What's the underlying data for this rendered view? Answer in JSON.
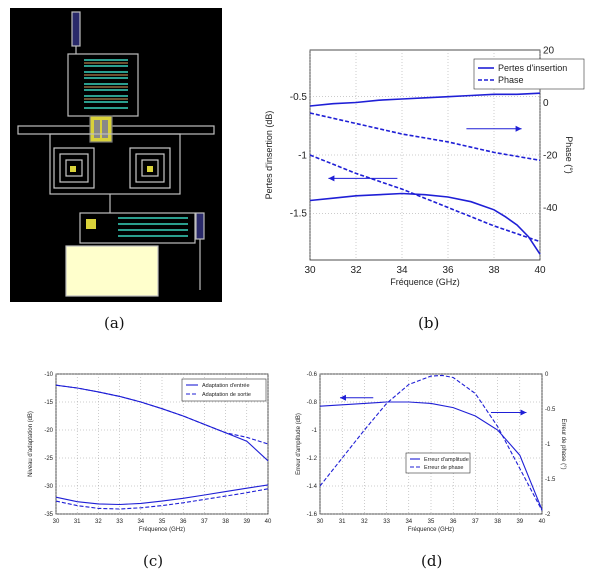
{
  "captions": {
    "a": "(a)",
    "b": "(b)",
    "c": "(c)",
    "d": "(d)"
  },
  "colors": {
    "curve": "#1f1fd6",
    "layout_bg": "#000000",
    "metal": "#bfbfbf",
    "via": "#d9d23a",
    "pad": "#ffffcc",
    "stripe": "#2a9e8e"
  },
  "chart_data": [
    {
      "panel": "b",
      "type": "line",
      "xlabel": "Fréquence (GHz)",
      "ylabel": "Pertes d'insertion (dB)",
      "y2label": "Phase (°)",
      "xlim": [
        30,
        40
      ],
      "ylim": [
        -1.9,
        -0.1
      ],
      "y2lim": [
        -60,
        20
      ],
      "xticks": [
        "30",
        "32",
        "34",
        "36",
        "38",
        "40"
      ],
      "yticks": [
        "-0.5",
        "-1",
        "-1.5"
      ],
      "y2ticks": [
        "20",
        "0",
        "-20",
        "-40"
      ],
      "legend": {
        "position": "top-right",
        "entries": [
          "Pertes d'insertion",
          "Phase"
        ]
      },
      "series": [
        {
          "name": "Pertes d'insertion",
          "axis": "left",
          "style": "solid",
          "x": [
            30,
            31,
            32,
            33,
            34,
            35,
            36,
            37,
            38,
            39,
            40
          ],
          "values": [
            -0.58,
            -0.56,
            -0.55,
            -0.53,
            -0.52,
            -0.51,
            -0.5,
            -0.49,
            -0.48,
            -0.48,
            -0.47
          ]
        },
        {
          "axis": "left",
          "style": "solid",
          "x": [
            30,
            31,
            32,
            33,
            34,
            35,
            36,
            37,
            38,
            38.5,
            39,
            39.5,
            40
          ],
          "values": [
            -1.39,
            -1.37,
            -1.35,
            -1.34,
            -1.33,
            -1.34,
            -1.36,
            -1.4,
            -1.47,
            -1.53,
            -1.6,
            -1.7,
            -1.85
          ]
        },
        {
          "name": "Phase",
          "axis": "right",
          "style": "dashed",
          "x": [
            30,
            32,
            34,
            36,
            38,
            40
          ],
          "values": [
            -4,
            -8,
            -12,
            -15,
            -19,
            -22
          ]
        },
        {
          "axis": "right",
          "style": "dashed",
          "x": [
            30,
            32,
            34,
            36,
            38,
            40
          ],
          "values": [
            -20,
            -27,
            -33,
            -40,
            -47,
            -53
          ]
        }
      ],
      "annotations": [
        {
          "type": "arrow",
          "direction": "right",
          "x_from": 36.8,
          "x_to": 39.2,
          "y": -10,
          "axis": "right"
        },
        {
          "type": "arrow",
          "direction": "left",
          "x_from": 33.8,
          "x_to": 30.8,
          "y": -1.2,
          "axis": "left"
        }
      ]
    },
    {
      "panel": "c",
      "type": "line",
      "xlabel": "Fréquence (GHz)",
      "ylabel": "Niveau d'adaptation (dB)",
      "xlim": [
        30,
        40
      ],
      "ylim": [
        -35,
        -10
      ],
      "xticks": [
        "30",
        "31",
        "32",
        "33",
        "34",
        "35",
        "36",
        "37",
        "38",
        "39",
        "40"
      ],
      "yticks": [
        "-10",
        "-15",
        "-20",
        "-25",
        "-30",
        "-35"
      ],
      "legend": {
        "position": "top-right",
        "entries": [
          "Adaptation d'entrée",
          "Adaptation de sortie"
        ]
      },
      "series": [
        {
          "name": "Adaptation d'entrée",
          "style": "solid",
          "x": [
            30,
            31,
            32,
            33,
            34,
            35,
            36,
            37,
            38,
            39,
            40
          ],
          "values": [
            -12.0,
            -12.5,
            -13.2,
            -14.0,
            -15.0,
            -16.2,
            -17.5,
            -19.0,
            -20.5,
            -22.0,
            -25.5
          ]
        },
        {
          "name": "Adaptation de sortie",
          "style": "dashed",
          "x": [
            30,
            31,
            32,
            33,
            34,
            35,
            36,
            37,
            38,
            39,
            40
          ],
          "values": [
            -12.0,
            -12.5,
            -13.2,
            -14.0,
            -15.0,
            -16.2,
            -17.5,
            -19.0,
            -20.5,
            -21.3,
            -22.5
          ]
        },
        {
          "style": "solid",
          "x": [
            30,
            31,
            32,
            33,
            34,
            35,
            36,
            37,
            38,
            39,
            40
          ],
          "values": [
            -32.0,
            -32.8,
            -33.2,
            -33.3,
            -33.1,
            -32.7,
            -32.2,
            -31.6,
            -31.0,
            -30.4,
            -29.8
          ]
        },
        {
          "style": "dashed",
          "x": [
            30,
            31,
            32,
            33,
            34,
            35,
            36,
            37,
            38,
            39,
            40
          ],
          "values": [
            -32.7,
            -33.5,
            -34.0,
            -34.1,
            -33.9,
            -33.5,
            -33.0,
            -32.4,
            -31.8,
            -31.2,
            -30.5
          ]
        }
      ]
    },
    {
      "panel": "d",
      "type": "line",
      "xlabel": "Fréquence (GHz)",
      "ylabel": "Erreur d'amplitude (dB)",
      "y2label": "Erreur de phase (°)",
      "xlim": [
        30,
        40
      ],
      "ylim": [
        -1.6,
        -0.6
      ],
      "y2lim": [
        -2,
        0
      ],
      "xticks": [
        "30",
        "31",
        "32",
        "33",
        "34",
        "35",
        "36",
        "37",
        "38",
        "39",
        "40"
      ],
      "yticks": [
        "-0.6",
        "-0.8",
        "-1",
        "-1.2",
        "-1.4",
        "-1.6"
      ],
      "y2ticks": [
        "0",
        "-0.5",
        "-1",
        "-1.5",
        "-2"
      ],
      "legend": {
        "position": "center",
        "entries": [
          "Erreur d'amplitude",
          "Erreur de phase"
        ]
      },
      "series": [
        {
          "name": "Erreur d'amplitude",
          "axis": "left",
          "style": "solid",
          "x": [
            30,
            31,
            32,
            33,
            34,
            35,
            36,
            37,
            38,
            39,
            40
          ],
          "values": [
            -0.83,
            -0.82,
            -0.81,
            -0.8,
            -0.8,
            -0.81,
            -0.84,
            -0.9,
            -1.0,
            -1.18,
            -1.57
          ]
        },
        {
          "name": "Erreur de phase",
          "axis": "right",
          "style": "dashed",
          "x": [
            30,
            31,
            32,
            33,
            34,
            35,
            35.5,
            36,
            37,
            38,
            39,
            40
          ],
          "values": [
            -1.6,
            -1.2,
            -0.8,
            -0.42,
            -0.15,
            -0.03,
            -0.02,
            -0.05,
            -0.28,
            -0.75,
            -1.35,
            -1.95
          ]
        }
      ],
      "annotations": [
        {
          "type": "arrow",
          "direction": "left",
          "x_from": 32.4,
          "x_to": 30.9,
          "y": -0.77,
          "axis": "left"
        },
        {
          "type": "arrow",
          "direction": "right",
          "x_from": 37.7,
          "x_to": 39.3,
          "y": -0.55,
          "axis": "right"
        }
      ]
    }
  ]
}
